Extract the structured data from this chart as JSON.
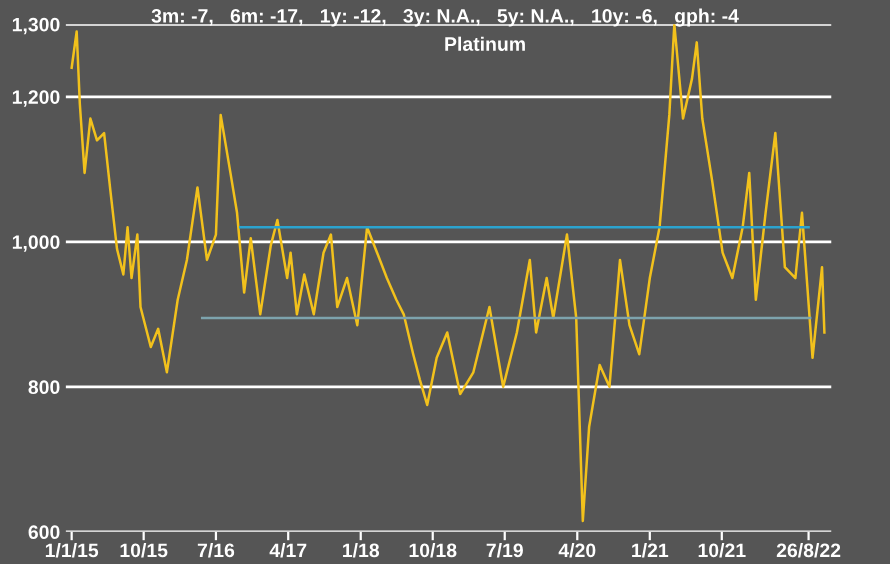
{
  "chart_data": {
    "type": "line",
    "title": "Platinum",
    "subtitle": "3m: -7,   6m: -17,   1y: -12,   3y: N.A.,   5y: N.A.,   10y: -6,   gph: -4",
    "xlim": [
      "2014-12-10",
      "2022-11-20"
    ],
    "xticks": [
      {
        "value": "2015-01-01",
        "label": "1/1/15"
      },
      {
        "value": "2015-10-01",
        "label": "10/15"
      },
      {
        "value": "2016-07-01",
        "label": "7/16"
      },
      {
        "value": "2017-04-01",
        "label": "4/17"
      },
      {
        "value": "2018-01-01",
        "label": "1/18"
      },
      {
        "value": "2018-10-01",
        "label": "10/18"
      },
      {
        "value": "2019-07-01",
        "label": "7/19"
      },
      {
        "value": "2020-04-01",
        "label": "4/20"
      },
      {
        "value": "2021-01-01",
        "label": "1/21"
      },
      {
        "value": "2021-10-01",
        "label": "10/21"
      },
      {
        "value": "2022-08-26",
        "label": "26/8/22"
      }
    ],
    "ylim": [
      600,
      1300
    ],
    "yticks": [
      {
        "value": 600,
        "label": "600"
      },
      {
        "value": 800,
        "label": "800"
      },
      {
        "value": 1000,
        "label": "1,000"
      },
      {
        "value": 1200,
        "label": "1,200"
      },
      {
        "value": 1300,
        "label": "1,300"
      }
    ],
    "grid": "y",
    "series": [
      {
        "color": "#f2c11c",
        "x": [
          "2015-01-01",
          "2015-01-20",
          "2015-02-01",
          "2015-02-19",
          "2015-03-13",
          "2015-04-07",
          "2015-05-04",
          "2015-05-28",
          "2015-06-22",
          "2015-07-16",
          "2015-08-01",
          "2015-08-16",
          "2015-09-07",
          "2015-09-19",
          "2015-10-28",
          "2015-11-25",
          "2015-12-28",
          "2016-02-07",
          "2016-03-13",
          "2016-04-22",
          "2016-05-28",
          "2016-07-01",
          "2016-07-19",
          "2016-08-25",
          "2016-09-19",
          "2016-10-16",
          "2016-11-10",
          "2016-12-16",
          "2017-01-25",
          "2017-02-19",
          "2017-03-28",
          "2017-04-10",
          "2017-05-04",
          "2017-06-01",
          "2017-07-07",
          "2017-08-13",
          "2017-09-10",
          "2017-10-04",
          "2017-11-10",
          "2017-12-19",
          "2018-01-25",
          "2018-03-04",
          "2018-04-10",
          "2018-05-16",
          "2018-06-13",
          "2018-07-19",
          "2018-08-13",
          "2018-09-10",
          "2018-10-16",
          "2018-11-25",
          "2019-01-13",
          "2019-03-04",
          "2019-05-04",
          "2019-06-25",
          "2019-08-16",
          "2019-10-04",
          "2019-10-28",
          "2019-12-07",
          "2020-01-01",
          "2020-02-22",
          "2020-03-28",
          "2020-04-22",
          "2020-05-16",
          "2020-06-25",
          "2020-08-01",
          "2020-09-10",
          "2020-10-16",
          "2020-11-22",
          "2021-01-01",
          "2021-02-07",
          "2021-03-16",
          "2021-04-04",
          "2021-05-07",
          "2021-06-10",
          "2021-06-28",
          "2021-07-19",
          "2021-08-25",
          "2021-10-04",
          "2021-11-10",
          "2021-12-19",
          "2022-01-13",
          "2022-02-07",
          "2022-03-16",
          "2022-04-22",
          "2022-05-28",
          "2022-07-07",
          "2022-08-01",
          "2022-09-10",
          "2022-10-16",
          "2022-10-25"
        ],
        "values": [
          1240,
          1290,
          1190,
          1095,
          1170,
          1140,
          1150,
          1070,
          990,
          955,
          1020,
          950,
          1010,
          910,
          855,
          880,
          820,
          920,
          975,
          1075,
          975,
          1010,
          1175,
          1095,
          1040,
          930,
          1005,
          900,
          995,
          1030,
          950,
          985,
          900,
          955,
          900,
          985,
          1010,
          910,
          950,
          885,
          1020,
          985,
          950,
          920,
          900,
          845,
          810,
          775,
          840,
          875,
          790,
          820,
          910,
          800,
          875,
          975,
          875,
          950,
          895,
          1010,
          895,
          615,
          745,
          830,
          800,
          975,
          885,
          845,
          950,
          1020,
          1175,
          1300,
          1170,
          1225,
          1275,
          1170,
          1085,
          985,
          950,
          1020,
          1095,
          920,
          1040,
          1150,
          965,
          950,
          1040,
          840,
          965,
          875
        ]
      },
      {
        "color": "#2ba3cf",
        "x": [
          "2016-10-01",
          "2022-08-26"
        ],
        "values": [
          1020,
          1020
        ]
      },
      {
        "color": "#7da3ad",
        "x": [
          "2016-05-10",
          "2022-09-01"
        ],
        "values": [
          895,
          895
        ]
      }
    ]
  }
}
